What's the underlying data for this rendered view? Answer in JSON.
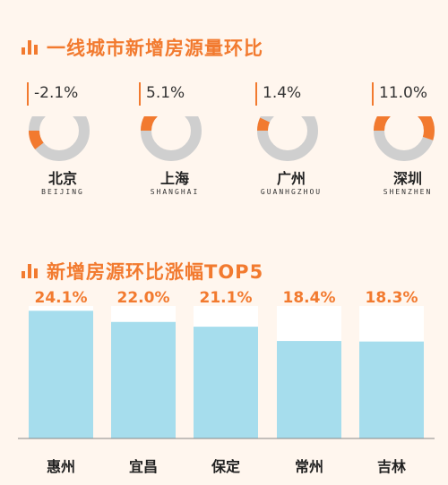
{
  "section1": {
    "title": "一线城市新增房源量环比"
  },
  "section2": {
    "title": "新增房源环比涨幅TOP5"
  },
  "cities": [
    {
      "name": "北京",
      "pinyin": "BEIJING",
      "change": "-2.1%"
    },
    {
      "name": "上海",
      "pinyin": "SHANGHAI",
      "change": "5.1%"
    },
    {
      "name": "广州",
      "pinyin": "GUANHGZHOU",
      "change": "1.4%"
    },
    {
      "name": "深圳",
      "pinyin": "SHENZHEN",
      "change": "11.0%"
    }
  ],
  "chart_data": [
    {
      "type": "pie",
      "categories": [
        "北京",
        "上海",
        "广州",
        "深圳"
      ],
      "values": [
        -2.1,
        5.1,
        1.4,
        11.0
      ],
      "unit": "%"
    },
    {
      "type": "bar",
      "categories": [
        "惠州",
        "宜昌",
        "保定",
        "常州",
        "吉林"
      ],
      "values": [
        24.1,
        22.0,
        21.1,
        18.4,
        18.3
      ],
      "labels": [
        "24.1%",
        "22.0%",
        "21.1%",
        "18.4%",
        "18.3%"
      ],
      "unit": "%",
      "ylim": [
        0,
        25
      ]
    }
  ],
  "colors": {
    "accent": "#f27a2f",
    "ring_bg": "#cfcfcf",
    "bar": "#a6dded",
    "track": "#ffffff",
    "background": "#fff6ee"
  }
}
